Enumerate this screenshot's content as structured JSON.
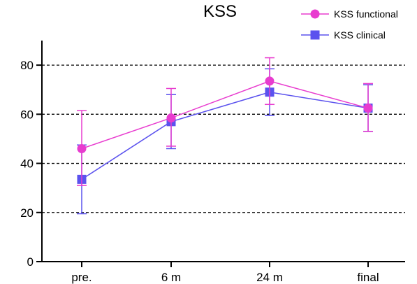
{
  "chart_data": {
    "type": "line",
    "title": "KSS",
    "xlabel": "",
    "ylabel": "",
    "categories": [
      "pre.",
      "6 m",
      "24 m",
      "final"
    ],
    "ylim": [
      0,
      90
    ],
    "yticks": [
      0,
      20,
      40,
      60,
      80
    ],
    "grid": "dashed horizontal lines at y = 20, 40, 60, 80",
    "legend_position": "top-right",
    "series": [
      {
        "name": "KSS functional",
        "color": "#e83ccf",
        "marker": "circle",
        "values": [
          46,
          58.5,
          73.5,
          62.5
        ],
        "error_upper": [
          61.5,
          70.5,
          83,
          72.5
        ],
        "error_lower": [
          31,
          47,
          64,
          53
        ]
      },
      {
        "name": "KSS clinical",
        "color": "#5b52ee",
        "marker": "square",
        "values": [
          33.5,
          57,
          69,
          62.5
        ],
        "error_upper": [
          47.5,
          68,
          78.5,
          72
        ],
        "error_lower": [
          19.5,
          46,
          59.5,
          53
        ]
      }
    ]
  }
}
